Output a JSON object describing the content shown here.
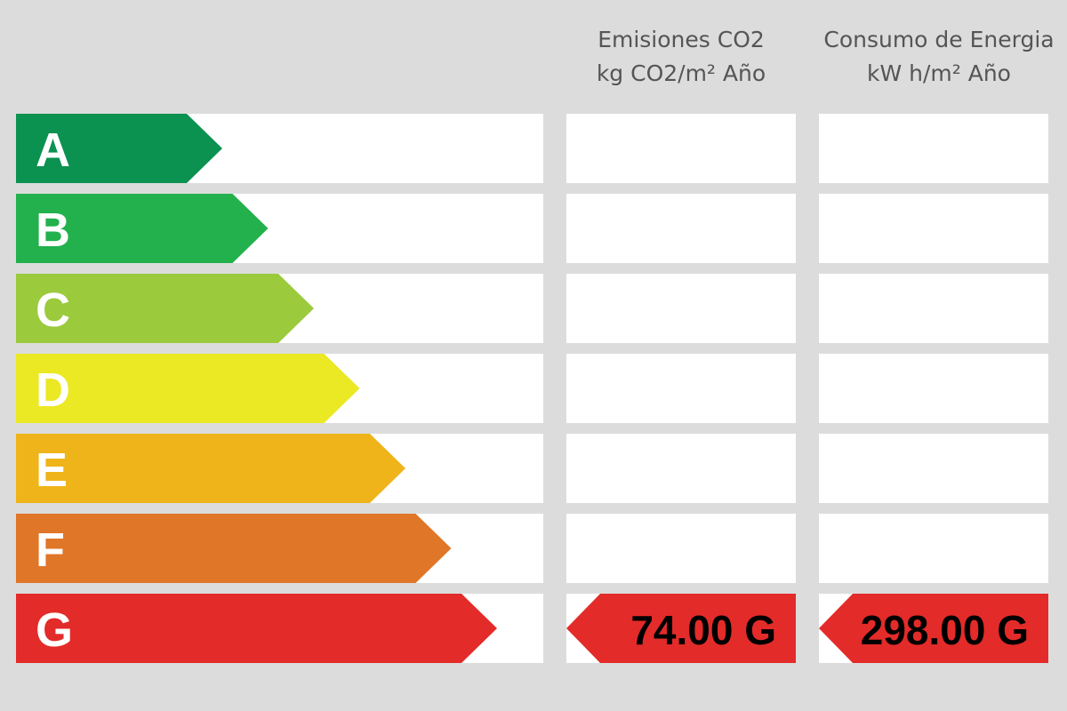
{
  "headers": {
    "co2": {
      "line1": "Emisiones CO2",
      "line2": "kg CO2/m² Año"
    },
    "energy": {
      "line1": "Consumo de Energia",
      "line2": "kW h/m² Año"
    }
  },
  "ratings": [
    {
      "letter": "A",
      "color": "#0b9150"
    },
    {
      "letter": "B",
      "color": "#22b14c"
    },
    {
      "letter": "C",
      "color": "#9bca3c"
    },
    {
      "letter": "D",
      "color": "#ebe824"
    },
    {
      "letter": "E",
      "color": "#efb419"
    },
    {
      "letter": "F",
      "color": "#e07628"
    },
    {
      "letter": "G",
      "color": "#e32b29"
    }
  ],
  "result": {
    "co2": {
      "value": "74.00 G",
      "rating": "G"
    },
    "energy": {
      "value": "298.00 G",
      "rating": "G"
    },
    "color": "#e32b29"
  }
}
